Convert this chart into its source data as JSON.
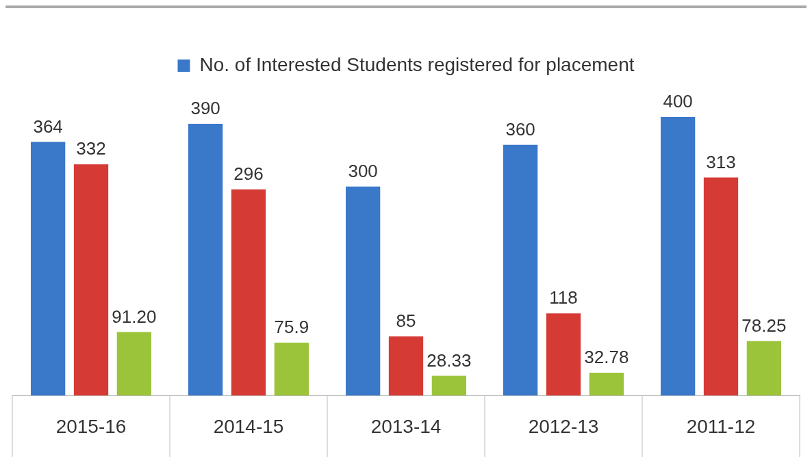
{
  "chart_data": {
    "type": "bar",
    "categories": [
      "2015-16",
      "2014-15",
      "2013-14",
      "2012-13",
      "2011-12"
    ],
    "series": [
      {
        "name": "No. of Interested Students registered for placement",
        "color": "#3a78c9",
        "values": [
          364,
          390,
          300,
          360,
          400
        ]
      },
      {
        "color": "#d63a35",
        "values": [
          332,
          296,
          85,
          118,
          313
        ]
      },
      {
        "color": "#9bc43a",
        "values": [
          91.2,
          75.9,
          28.33,
          32.78,
          78.25
        ],
        "value_labels": [
          "91.20",
          "75.9",
          "28.33",
          "32.78",
          "78.25"
        ]
      }
    ],
    "data_labels": true,
    "legend": "top",
    "grid": false
  }
}
